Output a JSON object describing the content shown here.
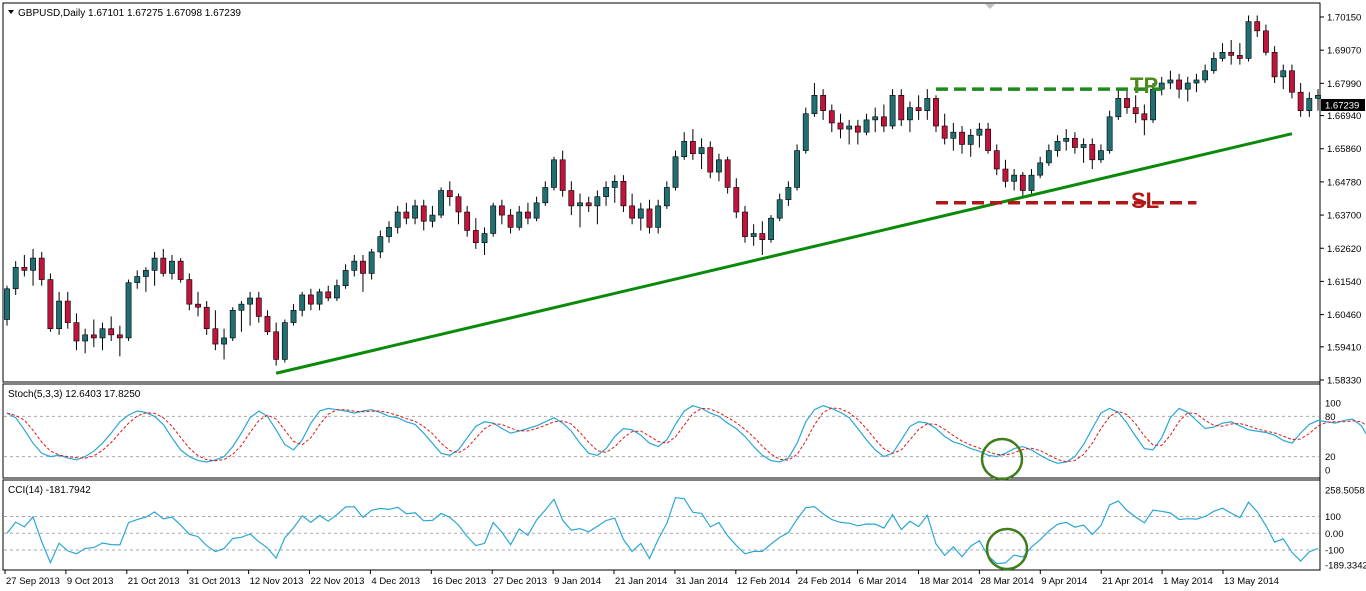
{
  "colors": {
    "background": "#ffffff",
    "bull_candle": "#1f6f73",
    "bear_candle": "#c0143c",
    "trendline": "#0a8a0a",
    "tp_line": "#1f8a1f",
    "sl_line": "#b01818",
    "stoch_main": "#2aa7d6",
    "stoch_signal": "#e01818",
    "cci": "#2aa7d6",
    "circle": "#3f7d1c",
    "price_badge": "#000000"
  },
  "price_panel": {
    "symbol_info": "GBPUSD,Daily  1.67101 1.67275 1.67098 1.67239",
    "current_price": "1.67239",
    "ylim": [
      1.5833,
      1.7015
    ],
    "ticks": [
      "1.70150",
      "1.69070",
      "1.67990",
      "1.66940",
      "1.65860",
      "1.64780",
      "1.63700",
      "1.62620",
      "1.61540",
      "1.60460",
      "1.59410",
      "1.58330"
    ],
    "tick_values": [
      1.7015,
      1.6907,
      1.6799,
      1.6694,
      1.6586,
      1.6478,
      1.637,
      1.6262,
      1.6154,
      1.6046,
      1.5941,
      1.5833
    ],
    "tp_label": "TP",
    "sl_label": "SL"
  },
  "stoch_panel": {
    "label": "Stoch(5,3,3) 12.6403 17.8250",
    "ticks": [
      "100",
      "80",
      "20",
      "0"
    ],
    "tick_values": [
      100,
      80,
      20,
      0
    ]
  },
  "cci_panel": {
    "label": "CCI(14) -181.7942",
    "ticks": [
      "258.5058",
      "100",
      "0.00",
      "-100",
      "-189.3342"
    ],
    "tick_values": [
      258.5058,
      100,
      0,
      -100,
      -189.3342
    ]
  },
  "dates": [
    "27 Sep 2013",
    "9 Oct 2013",
    "21 Oct 2013",
    "31 Oct 2013",
    "12 Nov 2013",
    "22 Nov 2013",
    "4 Dec 2013",
    "16 Dec 2013",
    "27 Dec 2013",
    "9 Jan 2014",
    "21 Jan 2014",
    "31 Jan 2014",
    "12 Feb 2014",
    "24 Feb 2014",
    "6 Mar 2014",
    "18 Mar 2014",
    "28 Mar 2014",
    "9 Apr 2014",
    "21 Apr 2014",
    "1 May 2014",
    "13 May 2014"
  ],
  "chart_data": {
    "type": "candlestick",
    "title": "GBPUSD,Daily",
    "ylim": [
      1.5833,
      1.7015
    ],
    "candles": [
      [
        1.603,
        1.614,
        1.601,
        1.613
      ],
      [
        1.613,
        1.622,
        1.611,
        1.62
      ],
      [
        1.62,
        1.624,
        1.617,
        1.619
      ],
      [
        1.619,
        1.626,
        1.614,
        1.623
      ],
      [
        1.623,
        1.625,
        1.614,
        1.616
      ],
      [
        1.616,
        1.618,
        1.599,
        1.6
      ],
      [
        1.6,
        1.612,
        1.598,
        1.609
      ],
      [
        1.609,
        1.612,
        1.6,
        1.602
      ],
      [
        1.602,
        1.605,
        1.593,
        1.596
      ],
      [
        1.596,
        1.6,
        1.592,
        1.598
      ],
      [
        1.598,
        1.603,
        1.594,
        1.597
      ],
      [
        1.597,
        1.602,
        1.593,
        1.6
      ],
      [
        1.6,
        1.604,
        1.596,
        1.598
      ],
      [
        1.598,
        1.601,
        1.591,
        1.597
      ],
      [
        1.597,
        1.616,
        1.596,
        1.615
      ],
      [
        1.615,
        1.619,
        1.613,
        1.617
      ],
      [
        1.617,
        1.62,
        1.612,
        1.619
      ],
      [
        1.619,
        1.625,
        1.614,
        1.623
      ],
      [
        1.623,
        1.626,
        1.617,
        1.618
      ],
      [
        1.618,
        1.624,
        1.616,
        1.622
      ],
      [
        1.622,
        1.623,
        1.615,
        1.616
      ],
      [
        1.616,
        1.618,
        1.606,
        1.608
      ],
      [
        1.608,
        1.612,
        1.604,
        1.607
      ],
      [
        1.607,
        1.609,
        1.598,
        1.6
      ],
      [
        1.6,
        1.606,
        1.593,
        1.595
      ],
      [
        1.595,
        1.6,
        1.59,
        1.597
      ],
      [
        1.597,
        1.607,
        1.596,
        1.606
      ],
      [
        1.606,
        1.609,
        1.599,
        1.608
      ],
      [
        1.608,
        1.612,
        1.601,
        1.61
      ],
      [
        1.61,
        1.612,
        1.602,
        1.604
      ],
      [
        1.604,
        1.606,
        1.598,
        1.599
      ],
      [
        1.599,
        1.602,
        1.588,
        1.59
      ],
      [
        1.59,
        1.603,
        1.589,
        1.602
      ],
      [
        1.602,
        1.608,
        1.601,
        1.606
      ],
      [
        1.606,
        1.612,
        1.604,
        1.611
      ],
      [
        1.611,
        1.613,
        1.606,
        1.608
      ],
      [
        1.608,
        1.613,
        1.606,
        1.612
      ],
      [
        1.612,
        1.614,
        1.609,
        1.61
      ],
      [
        1.61,
        1.616,
        1.609,
        1.614
      ],
      [
        1.614,
        1.621,
        1.613,
        1.619
      ],
      [
        1.619,
        1.624,
        1.617,
        1.622
      ],
      [
        1.622,
        1.624,
        1.612,
        1.618
      ],
      [
        1.618,
        1.626,
        1.616,
        1.625
      ],
      [
        1.625,
        1.632,
        1.623,
        1.63
      ],
      [
        1.63,
        1.635,
        1.628,
        1.633
      ],
      [
        1.633,
        1.64,
        1.631,
        1.638
      ],
      [
        1.638,
        1.641,
        1.634,
        1.636
      ],
      [
        1.636,
        1.642,
        1.634,
        1.64
      ],
      [
        1.64,
        1.642,
        1.632,
        1.635
      ],
      [
        1.635,
        1.64,
        1.633,
        1.637
      ],
      [
        1.637,
        1.646,
        1.636,
        1.645
      ],
      [
        1.645,
        1.648,
        1.64,
        1.643
      ],
      [
        1.643,
        1.644,
        1.634,
        1.638
      ],
      [
        1.638,
        1.64,
        1.63,
        1.632
      ],
      [
        1.632,
        1.636,
        1.626,
        1.628
      ],
      [
        1.628,
        1.633,
        1.624,
        1.631
      ],
      [
        1.631,
        1.641,
        1.63,
        1.64
      ],
      [
        1.64,
        1.642,
        1.634,
        1.637
      ],
      [
        1.637,
        1.639,
        1.631,
        1.633
      ],
      [
        1.633,
        1.64,
        1.632,
        1.638
      ],
      [
        1.638,
        1.641,
        1.634,
        1.636
      ],
      [
        1.636,
        1.643,
        1.635,
        1.641
      ],
      [
        1.641,
        1.648,
        1.64,
        1.646
      ],
      [
        1.646,
        1.656,
        1.645,
        1.655
      ],
      [
        1.655,
        1.658,
        1.643,
        1.645
      ],
      [
        1.645,
        1.648,
        1.637,
        1.64
      ],
      [
        1.64,
        1.644,
        1.633,
        1.641
      ],
      [
        1.641,
        1.643,
        1.638,
        1.64
      ],
      [
        1.64,
        1.645,
        1.634,
        1.643
      ],
      [
        1.643,
        1.648,
        1.64,
        1.646
      ],
      [
        1.646,
        1.65,
        1.641,
        1.648
      ],
      [
        1.648,
        1.65,
        1.638,
        1.64
      ],
      [
        1.64,
        1.644,
        1.634,
        1.636
      ],
      [
        1.636,
        1.641,
        1.632,
        1.639
      ],
      [
        1.639,
        1.642,
        1.631,
        1.633
      ],
      [
        1.633,
        1.642,
        1.631,
        1.64
      ],
      [
        1.64,
        1.648,
        1.639,
        1.646
      ],
      [
        1.646,
        1.658,
        1.645,
        1.656
      ],
      [
        1.656,
        1.664,
        1.655,
        1.661
      ],
      [
        1.661,
        1.665,
        1.655,
        1.657
      ],
      [
        1.657,
        1.662,
        1.652,
        1.659
      ],
      [
        1.659,
        1.661,
        1.649,
        1.651
      ],
      [
        1.651,
        1.657,
        1.648,
        1.655
      ],
      [
        1.655,
        1.656,
        1.644,
        1.646
      ],
      [
        1.646,
        1.649,
        1.636,
        1.638
      ],
      [
        1.638,
        1.64,
        1.628,
        1.63
      ],
      [
        1.63,
        1.634,
        1.627,
        1.631
      ],
      [
        1.631,
        1.635,
        1.624,
        1.629
      ],
      [
        1.629,
        1.637,
        1.628,
        1.636
      ],
      [
        1.636,
        1.644,
        1.635,
        1.642
      ],
      [
        1.642,
        1.648,
        1.64,
        1.646
      ],
      [
        1.646,
        1.66,
        1.645,
        1.658
      ],
      [
        1.658,
        1.672,
        1.657,
        1.67
      ],
      [
        1.67,
        1.68,
        1.669,
        1.676
      ],
      [
        1.676,
        1.678,
        1.668,
        1.671
      ],
      [
        1.671,
        1.673,
        1.664,
        1.667
      ],
      [
        1.667,
        1.67,
        1.662,
        1.665
      ],
      [
        1.665,
        1.668,
        1.66,
        1.666
      ],
      [
        1.666,
        1.668,
        1.66,
        1.664
      ],
      [
        1.664,
        1.67,
        1.663,
        1.668
      ],
      [
        1.668,
        1.672,
        1.664,
        1.669
      ],
      [
        1.669,
        1.673,
        1.664,
        1.666
      ],
      [
        1.666,
        1.678,
        1.665,
        1.676
      ],
      [
        1.676,
        1.678,
        1.666,
        1.668
      ],
      [
        1.668,
        1.674,
        1.664,
        1.672
      ],
      [
        1.672,
        1.676,
        1.668,
        1.671
      ],
      [
        1.671,
        1.678,
        1.668,
        1.675
      ],
      [
        1.675,
        1.676,
        1.664,
        1.666
      ],
      [
        1.666,
        1.67,
        1.66,
        1.662
      ],
      [
        1.662,
        1.667,
        1.658,
        1.664
      ],
      [
        1.664,
        1.666,
        1.657,
        1.66
      ],
      [
        1.66,
        1.665,
        1.656,
        1.663
      ],
      [
        1.663,
        1.667,
        1.659,
        1.665
      ],
      [
        1.665,
        1.667,
        1.657,
        1.658
      ],
      [
        1.658,
        1.66,
        1.65,
        1.652
      ],
      [
        1.652,
        1.655,
        1.646,
        1.648
      ],
      [
        1.648,
        1.652,
        1.645,
        1.65
      ],
      [
        1.65,
        1.651,
        1.643,
        1.645
      ],
      [
        1.645,
        1.652,
        1.644,
        1.65
      ],
      [
        1.65,
        1.656,
        1.649,
        1.654
      ],
      [
        1.654,
        1.66,
        1.653,
        1.658
      ],
      [
        1.658,
        1.663,
        1.656,
        1.661
      ],
      [
        1.661,
        1.665,
        1.658,
        1.662
      ],
      [
        1.662,
        1.664,
        1.657,
        1.659
      ],
      [
        1.659,
        1.662,
        1.654,
        1.66
      ],
      [
        1.66,
        1.662,
        1.652,
        1.655
      ],
      [
        1.655,
        1.66,
        1.654,
        1.658
      ],
      [
        1.658,
        1.671,
        1.657,
        1.669
      ],
      [
        1.669,
        1.678,
        1.668,
        1.675
      ],
      [
        1.675,
        1.678,
        1.67,
        1.672
      ],
      [
        1.672,
        1.676,
        1.667,
        1.67
      ],
      [
        1.67,
        1.673,
        1.663,
        1.668
      ],
      [
        1.668,
        1.68,
        1.667,
        1.678
      ],
      [
        1.678,
        1.682,
        1.676,
        1.68
      ],
      [
        1.68,
        1.684,
        1.678,
        1.681
      ],
      [
        1.681,
        1.683,
        1.675,
        1.678
      ],
      [
        1.678,
        1.682,
        1.674,
        1.68
      ],
      [
        1.68,
        1.683,
        1.677,
        1.681
      ],
      [
        1.681,
        1.686,
        1.68,
        1.684
      ],
      [
        1.684,
        1.69,
        1.683,
        1.688
      ],
      [
        1.688,
        1.693,
        1.687,
        1.69
      ],
      [
        1.69,
        1.694,
        1.686,
        1.689
      ],
      [
        1.689,
        1.693,
        1.686,
        1.688
      ],
      [
        1.688,
        1.702,
        1.687,
        1.7
      ],
      [
        1.7,
        1.702,
        1.695,
        1.697
      ],
      [
        1.697,
        1.699,
        1.689,
        1.69
      ],
      [
        1.69,
        1.692,
        1.68,
        1.682
      ],
      [
        1.682,
        1.686,
        1.678,
        1.684
      ],
      [
        1.684,
        1.686,
        1.675,
        1.677
      ],
      [
        1.677,
        1.68,
        1.669,
        1.671
      ],
      [
        1.671,
        1.677,
        1.669,
        1.675
      ],
      [
        1.675,
        1.678,
        1.671,
        1.676
      ]
    ],
    "trendline": [
      [
        31,
        1.5855
      ],
      [
        148,
        1.6635
      ]
    ],
    "tp_level": 1.678,
    "sl_level": 1.641,
    "stoch_main": [
      85,
      78,
      60,
      40,
      25,
      20,
      22,
      18,
      15,
      20,
      28,
      40,
      55,
      72,
      82,
      88,
      86,
      80,
      68,
      48,
      30,
      20,
      14,
      12,
      15,
      20,
      35,
      55,
      78,
      88,
      80,
      60,
      38,
      30,
      45,
      70,
      88,
      92,
      90,
      88,
      85,
      88,
      90,
      86,
      80,
      78,
      72,
      68,
      55,
      40,
      25,
      22,
      30,
      48,
      65,
      72,
      70,
      62,
      55,
      58,
      62,
      66,
      72,
      78,
      70,
      58,
      40,
      25,
      22,
      32,
      50,
      62,
      60,
      52,
      40,
      35,
      45,
      68,
      88,
      96,
      92,
      85,
      80,
      70,
      62,
      50,
      35,
      22,
      14,
      12,
      18,
      40,
      72,
      90,
      96,
      92,
      86,
      78,
      62,
      45,
      30,
      20,
      25,
      45,
      65,
      72,
      70,
      62,
      50,
      42,
      38,
      32,
      28,
      22,
      20,
      25,
      32,
      35,
      30,
      22,
      15,
      10,
      12,
      20,
      38,
      62,
      85,
      92,
      86,
      70,
      50,
      32,
      30,
      48,
      78,
      92,
      86,
      74,
      62,
      64,
      70,
      72,
      66,
      60,
      58,
      56,
      52,
      44,
      40,
      55,
      68,
      74,
      72,
      70,
      74,
      76,
      66,
      44,
      25,
      12,
      10,
      14,
      22,
      38
    ]
  }
}
